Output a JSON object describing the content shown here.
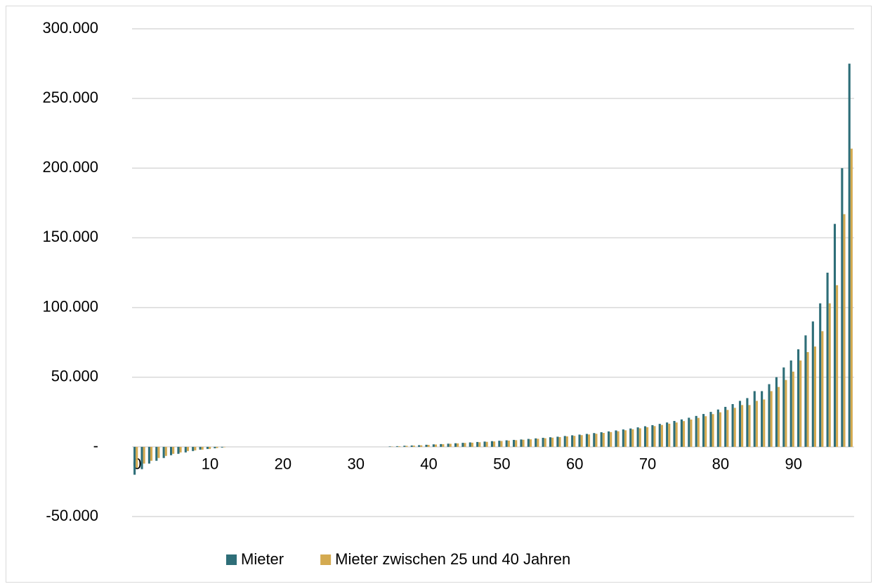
{
  "chart_data": {
    "type": "bar",
    "categories": [
      0,
      null,
      null,
      null,
      null,
      null,
      null,
      null,
      null,
      null,
      10,
      null,
      null,
      null,
      null,
      null,
      null,
      null,
      null,
      null,
      20,
      null,
      null,
      null,
      null,
      null,
      null,
      null,
      null,
      null,
      30,
      null,
      null,
      null,
      null,
      null,
      null,
      null,
      null,
      null,
      40,
      null,
      null,
      null,
      null,
      null,
      null,
      null,
      null,
      null,
      50,
      null,
      null,
      null,
      null,
      null,
      null,
      null,
      null,
      null,
      60,
      null,
      null,
      null,
      null,
      null,
      null,
      null,
      null,
      null,
      70,
      null,
      null,
      null,
      null,
      null,
      null,
      null,
      null,
      null,
      80,
      null,
      null,
      null,
      null,
      null,
      null,
      null,
      null,
      null,
      90,
      null,
      null,
      null,
      null,
      null,
      null,
      null,
      null
    ],
    "series": [
      {
        "name": "Mieter",
        "color": "#2e6e78",
        "values": [
          -20000,
          -16000,
          -12000,
          -10000,
          -8000,
          -6000,
          -5000,
          -4000,
          -3000,
          -2000,
          -1500,
          -1000,
          -500,
          0,
          0,
          0,
          0,
          0,
          0,
          0,
          0,
          0,
          0,
          0,
          0,
          0,
          0,
          0,
          0,
          0,
          0,
          0,
          0,
          0,
          0,
          300,
          500,
          800,
          1000,
          1200,
          1500,
          1800,
          2000,
          2300,
          2600,
          2900,
          3200,
          3500,
          3800,
          4100,
          4400,
          4700,
          5000,
          5300,
          5700,
          6100,
          6500,
          6900,
          7300,
          7800,
          8300,
          8800,
          9300,
          9900,
          10500,
          11100,
          11800,
          12500,
          13200,
          14000,
          14800,
          15600,
          16500,
          17500,
          18600,
          19700,
          20900,
          22200,
          23600,
          25100,
          26800,
          28700,
          30700,
          33000,
          35000,
          40000,
          40000,
          45000,
          50000,
          57000,
          62000,
          70000,
          80000,
          90000,
          103000,
          125000,
          160000,
          200000,
          275000
        ]
      },
      {
        "name": "Mieter zwischen 25 und 40 Jahren",
        "color": "#d4aa50",
        "values": [
          -15000,
          -12000,
          -10000,
          -8000,
          -6500,
          -5000,
          -4000,
          -3000,
          -2500,
          -2000,
          -1500,
          -800,
          -300,
          0,
          0,
          0,
          0,
          0,
          0,
          0,
          0,
          0,
          0,
          0,
          0,
          0,
          0,
          0,
          0,
          0,
          0,
          0,
          0,
          0,
          0,
          200,
          400,
          700,
          900,
          1100,
          1400,
          1700,
          1900,
          2200,
          2500,
          2800,
          3000,
          3300,
          3600,
          3900,
          4200,
          4500,
          4800,
          5100,
          5400,
          5800,
          6200,
          6600,
          7000,
          7500,
          7900,
          8400,
          8900,
          9400,
          10000,
          10600,
          11200,
          11900,
          12600,
          13300,
          14100,
          14900,
          15700,
          16600,
          17500,
          18500,
          19600,
          20800,
          22000,
          23500,
          24800,
          26500,
          28000,
          30000,
          30000,
          33000,
          34000,
          40000,
          43000,
          48000,
          54000,
          62000,
          68000,
          72000,
          83000,
          103000,
          116000,
          167000,
          214000
        ]
      }
    ],
    "ylim": [
      -50000,
      300000
    ],
    "yticks": [
      {
        "value": -50000,
        "label": "-50.000"
      },
      {
        "value": 0,
        "label": "-"
      },
      {
        "value": 50000,
        "label": "50.000"
      },
      {
        "value": 100000,
        "label": "100.000"
      },
      {
        "value": 150000,
        "label": "150.000"
      },
      {
        "value": 200000,
        "label": "200.000"
      },
      {
        "value": 250000,
        "label": "250.000"
      },
      {
        "value": 300000,
        "label": "300.000"
      }
    ],
    "grid": true,
    "legend": "bottom"
  }
}
